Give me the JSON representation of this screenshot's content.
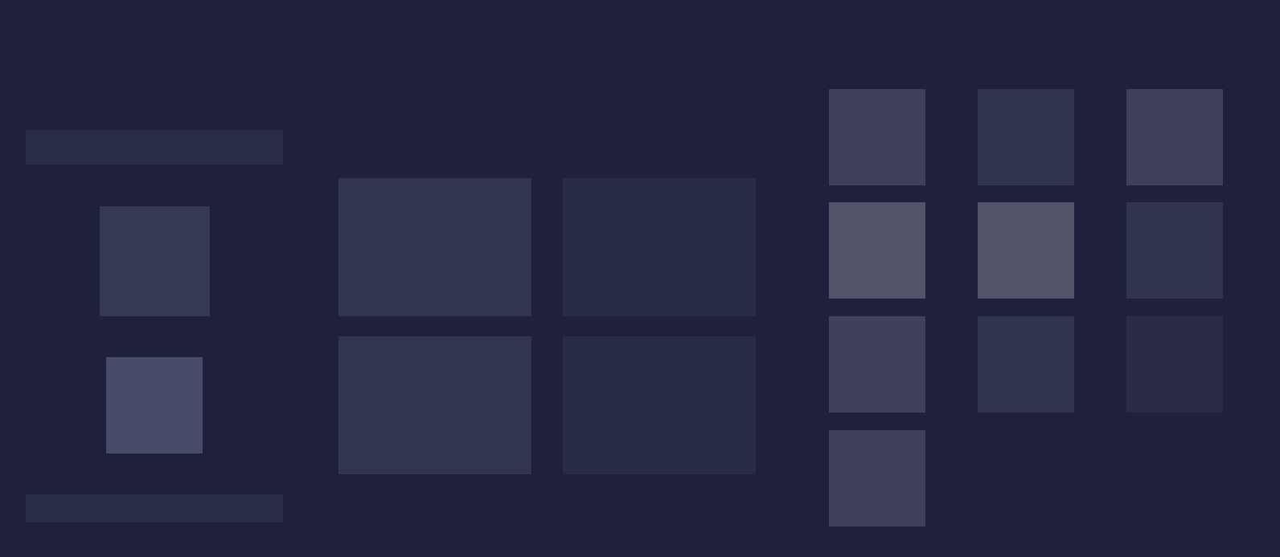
{
  "colors": {
    "background": "#1f203b",
    "left_bar_top": "#292e48",
    "left_square_a": "#333a51",
    "left_square_b": "#464c67",
    "left_bar_bottom": "#292e48",
    "panel_1": "#31354f",
    "panel_2": "#292c47",
    "panel_3": "#31354f",
    "panel_4": "#292c47",
    "tile_1": "#3f415c",
    "tile_2": "#31344e",
    "tile_3": "#3f415c",
    "tile_4": "#525469",
    "tile_5": "#525469",
    "tile_6": "#31344e",
    "tile_7": "#3f415c",
    "tile_8": "#31344e",
    "tile_9": "#2a2b45",
    "tile_10": "#3f415c"
  }
}
